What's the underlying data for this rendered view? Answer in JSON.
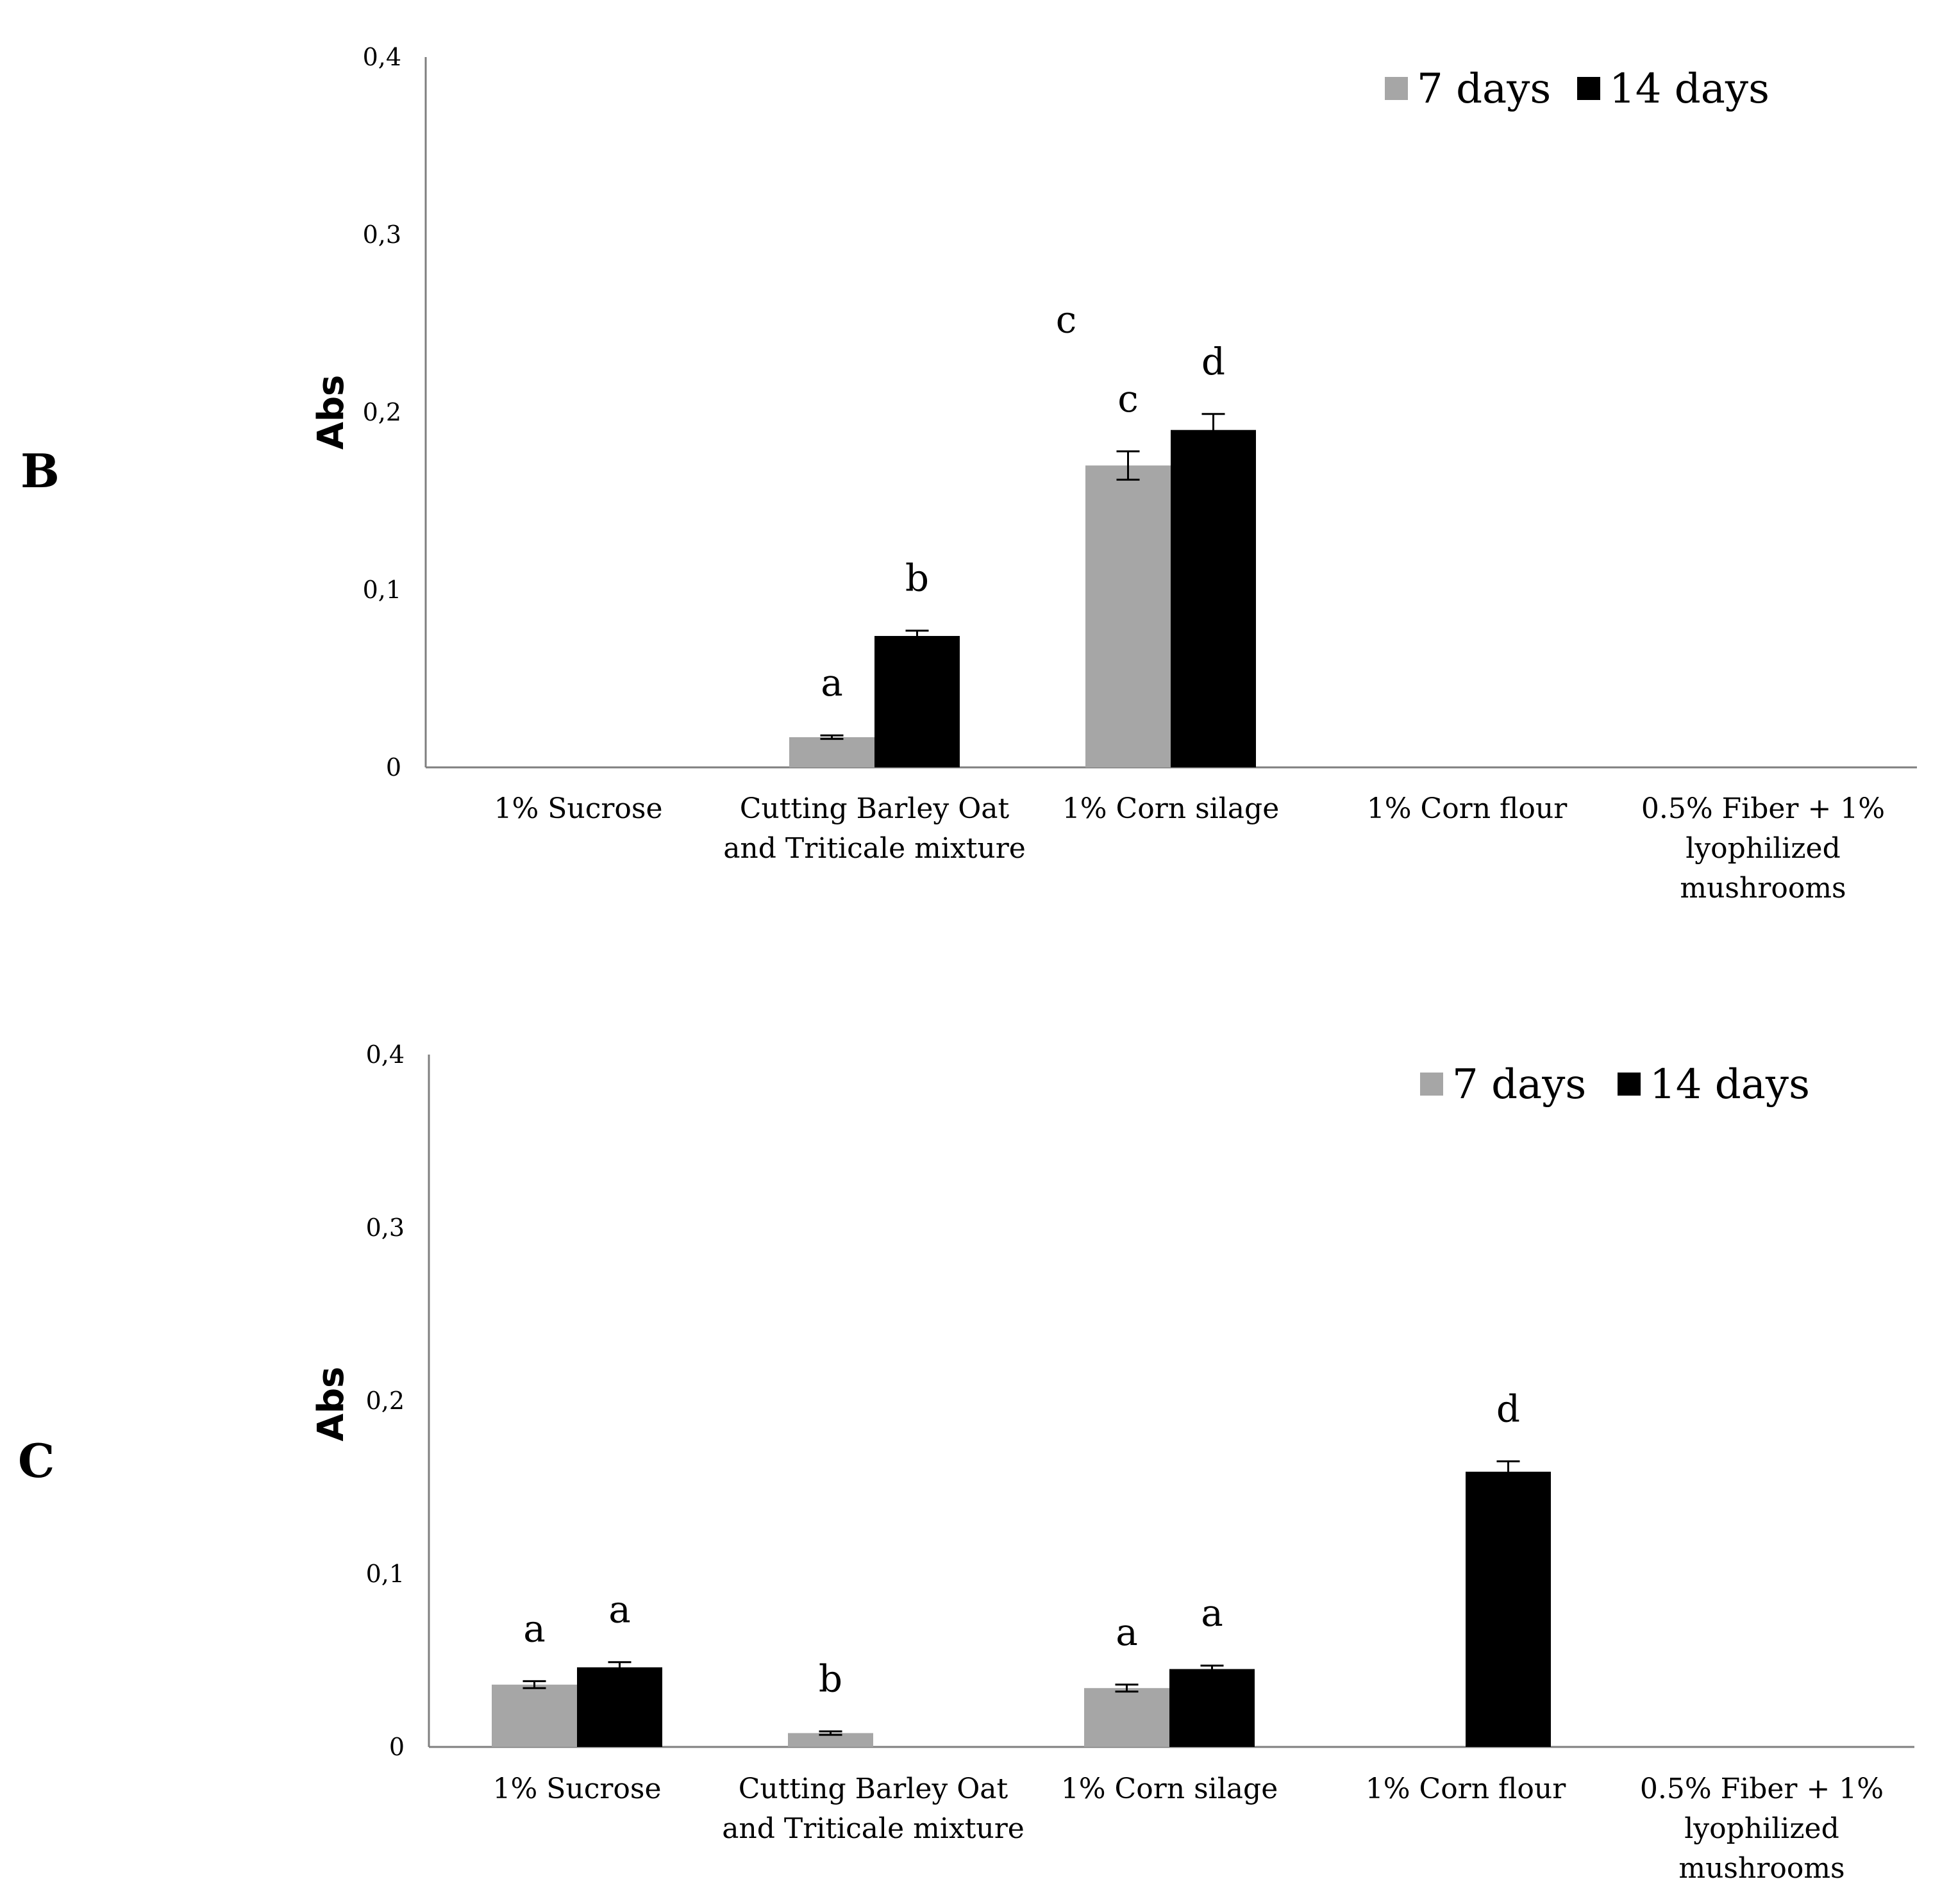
{
  "figure": {
    "panel_labels": [
      "B",
      "C"
    ]
  },
  "colors": {
    "series_7_days": "#a6a6a6",
    "series_14_days": "#000000",
    "axis": "#7f7f7f"
  },
  "chart_data": [
    {
      "type": "bar",
      "panel": "B",
      "categories": [
        [
          "1% Sucrose"
        ],
        [
          "Cutting Barley Oat",
          "and Triticale mixture"
        ],
        [
          "1% Corn silage"
        ],
        [
          "1% Corn flour"
        ],
        [
          "0.5% Fiber + 1%",
          "lyophilized",
          "mushrooms"
        ]
      ],
      "series": [
        {
          "name": "7 days",
          "values": [
            0,
            0.017,
            0.17,
            0,
            0
          ],
          "errors": [
            0,
            0.001,
            0.008,
            0,
            0
          ],
          "labels": [
            "",
            "a",
            "c",
            "",
            ""
          ]
        },
        {
          "name": "14 days",
          "values": [
            0,
            0.074,
            0.19,
            0,
            0
          ],
          "errors": [
            0,
            0.003,
            0.009,
            0,
            0
          ],
          "labels": [
            "",
            "b",
            "d",
            "",
            ""
          ]
        }
      ],
      "extra_annotations": [
        {
          "text": "c",
          "category_index": 2,
          "value": 0.245
        }
      ],
      "ylabel": "Abs",
      "xlabel": "",
      "ylim": [
        0,
        0.4
      ],
      "yticks": [
        0,
        0.1,
        0.2,
        0.3,
        0.4
      ],
      "ytick_labels": [
        "0",
        "0,1",
        "0,2",
        "0,3",
        "0,4"
      ],
      "legend": "top-right",
      "grid": false
    },
    {
      "type": "bar",
      "panel": "C",
      "categories": [
        [
          "1% Sucrose"
        ],
        [
          "Cutting Barley Oat",
          "and Triticale mixture"
        ],
        [
          "1% Corn silage"
        ],
        [
          "1% Corn flour"
        ],
        [
          "0.5% Fiber + 1%",
          "lyophilized",
          "mushrooms"
        ]
      ],
      "series": [
        {
          "name": "7 days",
          "values": [
            0.036,
            0.008,
            0.034,
            0,
            0
          ],
          "errors": [
            0.002,
            0.001,
            0.002,
            0,
            0
          ],
          "labels": [
            "a",
            "b",
            "a",
            "",
            ""
          ]
        },
        {
          "name": "14 days",
          "values": [
            0.046,
            0,
            0.045,
            0.159,
            0
          ],
          "errors": [
            0.003,
            0,
            0.002,
            0.006,
            0
          ],
          "labels": [
            "a",
            "",
            "a",
            "d",
            ""
          ]
        }
      ],
      "extra_annotations": [],
      "ylabel": "Abs",
      "xlabel": "",
      "ylim": [
        0,
        0.4
      ],
      "yticks": [
        0,
        0.1,
        0.2,
        0.3,
        0.4
      ],
      "ytick_labels": [
        "0",
        "0,1",
        "0,2",
        "0,3",
        "0,4"
      ],
      "legend": "top-right",
      "grid": false
    }
  ]
}
